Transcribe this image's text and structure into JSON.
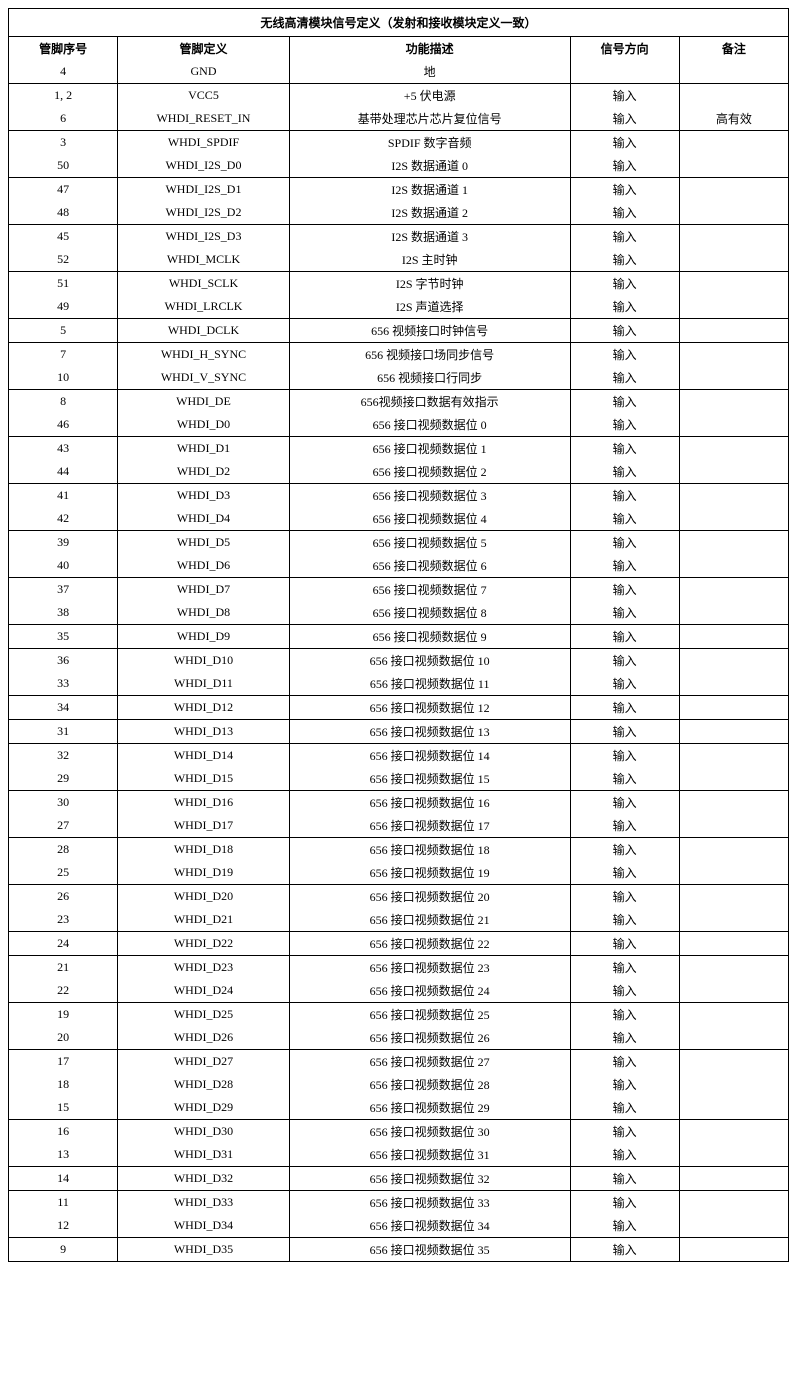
{
  "table": {
    "title": "无线高清模块信号定义（发射和接收模块定义一致）",
    "columns": [
      "管脚序号",
      "管脚定义",
      "功能描述",
      "信号方向",
      "备注"
    ],
    "col_widths_pct": [
      14,
      22,
      36,
      14,
      14
    ],
    "border_color": "#000000",
    "background_color": "#ffffff",
    "text_color": "#000000",
    "font_size_pt": 9,
    "groups": [
      [
        {
          "pin": "4",
          "def": "GND",
          "desc": "地",
          "dir": "",
          "note": ""
        }
      ],
      [
        {
          "pin": "1, 2",
          "def": "VCC5",
          "desc": "+5 伏电源",
          "dir": "输入",
          "note": ""
        },
        {
          "pin": "6",
          "def": "WHDI_RESET_IN",
          "desc": "基带处理芯片芯片复位信号",
          "dir": "输入",
          "note": "高有效"
        }
      ],
      [
        {
          "pin": "3",
          "def": "WHDI_SPDIF",
          "desc": "SPDIF 数字音频",
          "dir": "输入",
          "note": ""
        },
        {
          "pin": "50",
          "def": "WHDI_I2S_D0",
          "desc": "I2S 数据通道 0",
          "dir": "输入",
          "note": ""
        }
      ],
      [
        {
          "pin": "47",
          "def": "WHDI_I2S_D1",
          "desc": "I2S 数据通道 1",
          "dir": "输入",
          "note": ""
        },
        {
          "pin": "48",
          "def": "WHDI_I2S_D2",
          "desc": "I2S 数据通道 2",
          "dir": "输入",
          "note": ""
        }
      ],
      [
        {
          "pin": "45",
          "def": "WHDI_I2S_D3",
          "desc": "I2S 数据通道 3",
          "dir": "输入",
          "note": ""
        },
        {
          "pin": "52",
          "def": "WHDI_MCLK",
          "desc": "I2S 主时钟",
          "dir": "输入",
          "note": ""
        }
      ],
      [
        {
          "pin": "51",
          "def": "WHDI_SCLK",
          "desc": "I2S 字节时钟",
          "dir": "输入",
          "note": ""
        },
        {
          "pin": "49",
          "def": "WHDI_LRCLK",
          "desc": "I2S 声道选择",
          "dir": "输入",
          "note": ""
        }
      ],
      [
        {
          "pin": "5",
          "def": "WHDI_DCLK",
          "desc": "656 视频接口时钟信号",
          "dir": "输入",
          "note": ""
        }
      ],
      [
        {
          "pin": "7",
          "def": "WHDI_H_SYNC",
          "desc": "656 视频接口场同步信号",
          "dir": "输入",
          "note": ""
        },
        {
          "pin": "10",
          "def": "WHDI_V_SYNC",
          "desc": "656 视频接口行同步",
          "dir": "输入",
          "note": ""
        }
      ],
      [
        {
          "pin": "8",
          "def": "WHDI_DE",
          "desc": "656视频接口数据有效指示",
          "dir": "输入",
          "note": ""
        },
        {
          "pin": "46",
          "def": "WHDI_D0",
          "desc": "656 接口视频数据位 0",
          "dir": "输入",
          "note": ""
        }
      ],
      [
        {
          "pin": "43",
          "def": "WHDI_D1",
          "desc": "656 接口视频数据位 1",
          "dir": "输入",
          "note": ""
        },
        {
          "pin": "44",
          "def": "WHDI_D2",
          "desc": "656 接口视频数据位 2",
          "dir": "输入",
          "note": ""
        }
      ],
      [
        {
          "pin": "41",
          "def": "WHDI_D3",
          "desc": "656 接口视频数据位 3",
          "dir": "输入",
          "note": ""
        },
        {
          "pin": "42",
          "def": "WHDI_D4",
          "desc": "656 接口视频数据位 4",
          "dir": "输入",
          "note": ""
        }
      ],
      [
        {
          "pin": "39",
          "def": "WHDI_D5",
          "desc": "656 接口视频数据位 5",
          "dir": "输入",
          "note": ""
        },
        {
          "pin": "40",
          "def": "WHDI_D6",
          "desc": "656 接口视频数据位 6",
          "dir": "输入",
          "note": ""
        }
      ],
      [
        {
          "pin": "37",
          "def": "WHDI_D7",
          "desc": "656 接口视频数据位 7",
          "dir": "输入",
          "note": ""
        },
        {
          "pin": "38",
          "def": "WHDI_D8",
          "desc": "656 接口视频数据位 8",
          "dir": "输入",
          "note": ""
        }
      ],
      [
        {
          "pin": "35",
          "def": "WHDI_D9",
          "desc": "656 接口视频数据位 9",
          "dir": "输入",
          "note": ""
        }
      ],
      [
        {
          "pin": "36",
          "def": "WHDI_D10",
          "desc": "656 接口视频数据位 10",
          "dir": "输入",
          "note": ""
        },
        {
          "pin": "33",
          "def": "WHDI_D11",
          "desc": "656 接口视频数据位 11",
          "dir": "输入",
          "note": ""
        }
      ],
      [
        {
          "pin": "34",
          "def": "WHDI_D12",
          "desc": "656 接口视频数据位 12",
          "dir": "输入",
          "note": ""
        }
      ],
      [
        {
          "pin": "31",
          "def": "WHDI_D13",
          "desc": "656 接口视频数据位 13",
          "dir": "输入",
          "note": ""
        }
      ],
      [
        {
          "pin": "32",
          "def": "WHDI_D14",
          "desc": "656 接口视频数据位 14",
          "dir": "输入",
          "note": ""
        },
        {
          "pin": "29",
          "def": "WHDI_D15",
          "desc": "656 接口视频数据位 15",
          "dir": "输入",
          "note": ""
        }
      ],
      [
        {
          "pin": "30",
          "def": "WHDI_D16",
          "desc": "656 接口视频数据位 16",
          "dir": "输入",
          "note": ""
        },
        {
          "pin": "27",
          "def": "WHDI_D17",
          "desc": "656 接口视频数据位 17",
          "dir": "输入",
          "note": ""
        }
      ],
      [
        {
          "pin": "28",
          "def": "WHDI_D18",
          "desc": "656 接口视频数据位 18",
          "dir": "输入",
          "note": ""
        },
        {
          "pin": "25",
          "def": "WHDI_D19",
          "desc": "656 接口视频数据位 19",
          "dir": "输入",
          "note": ""
        }
      ],
      [
        {
          "pin": "26",
          "def": "WHDI_D20",
          "desc": "656 接口视频数据位 20",
          "dir": "输入",
          "note": ""
        },
        {
          "pin": "23",
          "def": "WHDI_D21",
          "desc": "656 接口视频数据位 21",
          "dir": "输入",
          "note": ""
        }
      ],
      [
        {
          "pin": "24",
          "def": "WHDI_D22",
          "desc": "656 接口视频数据位 22",
          "dir": "输入",
          "note": ""
        }
      ],
      [
        {
          "pin": "21",
          "def": "WHDI_D23",
          "desc": "656 接口视频数据位 23",
          "dir": "输入",
          "note": ""
        },
        {
          "pin": "22",
          "def": "WHDI_D24",
          "desc": "656 接口视频数据位 24",
          "dir": "输入",
          "note": ""
        }
      ],
      [
        {
          "pin": "19",
          "def": "WHDI_D25",
          "desc": "656 接口视频数据位 25",
          "dir": "输入",
          "note": ""
        },
        {
          "pin": "20",
          "def": "WHDI_D26",
          "desc": "656 接口视频数据位 26",
          "dir": "输入",
          "note": ""
        }
      ],
      [
        {
          "pin": "17",
          "def": "WHDI_D27",
          "desc": "656 接口视频数据位 27",
          "dir": "输入",
          "note": ""
        },
        {
          "pin": "18",
          "def": "WHDI_D28",
          "desc": "656 接口视频数据位 28",
          "dir": "输入",
          "note": ""
        },
        {
          "pin": "15",
          "def": "WHDI_D29",
          "desc": "656 接口视频数据位 29",
          "dir": "输入",
          "note": ""
        }
      ],
      [
        {
          "pin": "16",
          "def": "WHDI_D30",
          "desc": "656 接口视频数据位 30",
          "dir": "输入",
          "note": ""
        },
        {
          "pin": "13",
          "def": "WHDI_D31",
          "desc": "656 接口视频数据位 31",
          "dir": "输入",
          "note": ""
        }
      ],
      [
        {
          "pin": "14",
          "def": "WHDI_D32",
          "desc": "656 接口视频数据位 32",
          "dir": "输入",
          "note": ""
        }
      ],
      [
        {
          "pin": "11",
          "def": "WHDI_D33",
          "desc": "656 接口视频数据位 33",
          "dir": "输入",
          "note": ""
        },
        {
          "pin": "12",
          "def": "WHDI_D34",
          "desc": "656 接口视频数据位 34",
          "dir": "输入",
          "note": ""
        }
      ],
      [
        {
          "pin": "9",
          "def": "WHDI_D35",
          "desc": "656 接口视频数据位 35",
          "dir": "输入",
          "note": ""
        }
      ]
    ]
  }
}
